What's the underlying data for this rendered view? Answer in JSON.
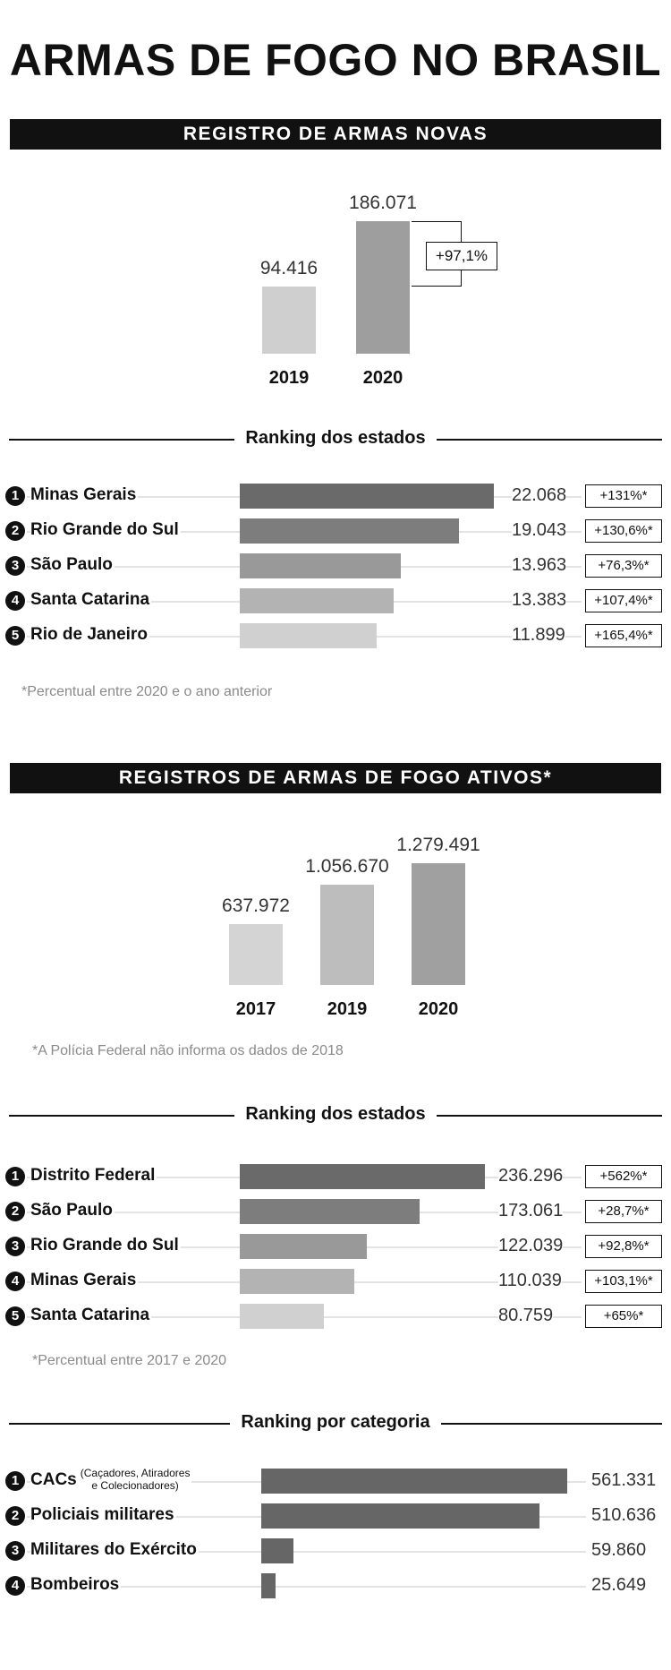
{
  "title": "ARMAS DE FOGO NO BRASIL",
  "section1": {
    "header": "REGISTRO DE ARMAS NOVAS",
    "chart_data": {
      "type": "bar",
      "categories": [
        "2019",
        "2020"
      ],
      "values": [
        94416,
        186071
      ],
      "value_labels": [
        "94.416",
        "186.071"
      ],
      "colors": [
        "#cfcfcf",
        "#9e9e9e"
      ],
      "change_label": "+97,1%"
    },
    "ranking_title": "Ranking dos estados",
    "ranking": [
      {
        "rank": "1",
        "name": "Minas Gerais",
        "value": 22068,
        "value_label": "22.068",
        "pct": "+131%*",
        "color": "#6a6a6a"
      },
      {
        "rank": "2",
        "name": "Rio Grande do Sul",
        "value": 19043,
        "value_label": "19.043",
        "pct": "+130,6%*",
        "color": "#7d7d7d"
      },
      {
        "rank": "3",
        "name": "São Paulo",
        "value": 13963,
        "value_label": "13.963",
        "pct": "+76,3%*",
        "color": "#999999"
      },
      {
        "rank": "4",
        "name": "Santa Catarina",
        "value": 13383,
        "value_label": "13.383",
        "pct": "+107,4%*",
        "color": "#b3b3b3"
      },
      {
        "rank": "5",
        "name": "Rio de Janeiro",
        "value": 11899,
        "value_label": "11.899",
        "pct": "+165,4%*",
        "color": "#d0d0d0"
      }
    ],
    "note": "*Percentual entre 2020 e o ano anterior"
  },
  "section2": {
    "header": "REGISTROS DE ARMAS DE FOGO ATIVOS*",
    "chart_data": {
      "type": "bar",
      "categories": [
        "2017",
        "2019",
        "2020"
      ],
      "values": [
        637972,
        1056670,
        1279491
      ],
      "value_labels": [
        "637.972",
        "1.056.670",
        "1.279.491"
      ],
      "colors": [
        "#d4d4d4",
        "#bdbdbd",
        "#a0a0a0"
      ]
    },
    "chart_note": "*A Polícia Federal não informa os dados de 2018",
    "ranking_title": "Ranking dos estados",
    "ranking": [
      {
        "rank": "1",
        "name": "Distrito Federal",
        "value": 236296,
        "value_label": "236.296",
        "pct": "+562%*",
        "color": "#6a6a6a"
      },
      {
        "rank": "2",
        "name": "São Paulo",
        "value": 173061,
        "value_label": "173.061",
        "pct": "+28,7%*",
        "color": "#7d7d7d"
      },
      {
        "rank": "3",
        "name": "Rio Grande do Sul",
        "value": 122039,
        "value_label": "122.039",
        "pct": "+92,8%*",
        "color": "#999999"
      },
      {
        "rank": "4",
        "name": "Minas Gerais",
        "value": 110039,
        "value_label": "110.039",
        "pct": "+103,1%*",
        "color": "#b3b3b3"
      },
      {
        "rank": "5",
        "name": "Santa Catarina",
        "value": 80759,
        "value_label": "80.759",
        "pct": "+65%*",
        "color": "#d0d0d0"
      }
    ],
    "note": "*Percentual entre 2017 e 2020"
  },
  "section3": {
    "ranking_title": "Ranking por categoria",
    "ranking": [
      {
        "rank": "1",
        "name": "CACs",
        "sub1": "(Caçadores, Atiradores",
        "sub2": "e Colecionadores)",
        "value": 561331,
        "value_label": "561.331",
        "color": "#666666"
      },
      {
        "rank": "2",
        "name": "Policiais militares",
        "value": 510636,
        "value_label": "510.636",
        "color": "#666666"
      },
      {
        "rank": "3",
        "name": "Militares do Exército",
        "value": 59860,
        "value_label": "59.860",
        "color": "#666666"
      },
      {
        "rank": "4",
        "name": "Bombeiros",
        "value": 25649,
        "value_label": "25.649",
        "color": "#666666"
      }
    ]
  }
}
